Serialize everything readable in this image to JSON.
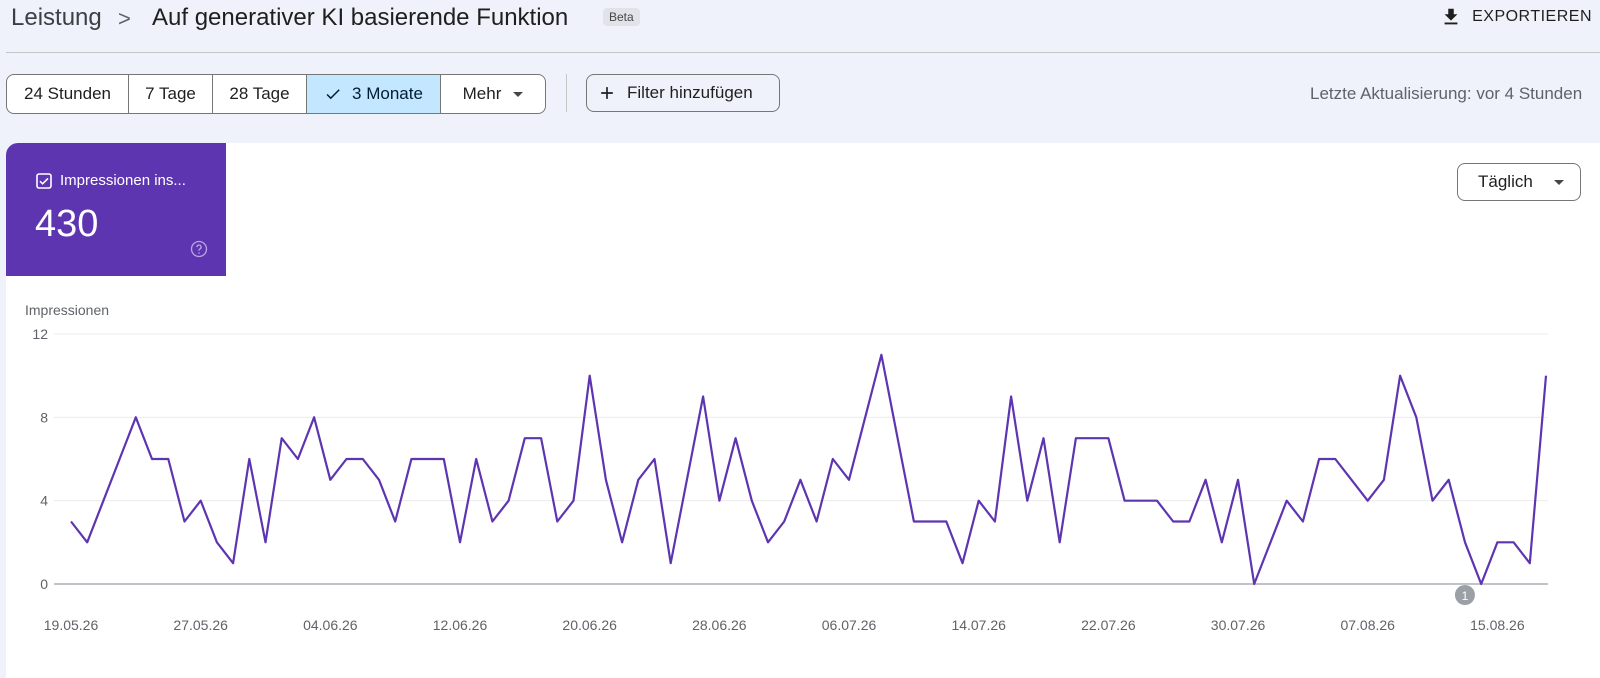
{
  "header": {
    "breadcrumb_root": "Leistung",
    "breadcrumb_separator": ">",
    "title": "Auf generativer KI basierende Funktion",
    "badge": "Beta",
    "export_label": "EXPORTIEREN",
    "export_icon": "download-icon"
  },
  "toolbar": {
    "ranges": [
      {
        "label": "24 Stunden",
        "selected": false
      },
      {
        "label": "7 Tage",
        "selected": false
      },
      {
        "label": "28 Tage",
        "selected": false
      },
      {
        "label": "3 Monate",
        "selected": true
      },
      {
        "label": "Mehr",
        "selected": false
      }
    ],
    "filter_label": "Filter hinzufügen",
    "last_update": "Letzte Aktualisierung: vor 4 Stunden"
  },
  "metric": {
    "label": "Impressionen ins...",
    "value": "430",
    "checked": true,
    "color": "#5e35b1"
  },
  "granularity": {
    "selected": "Täglich"
  },
  "chart_data": {
    "type": "line",
    "ylabel": "Impressionen",
    "ylim": [
      0,
      12
    ],
    "yticks": [
      0,
      4,
      8,
      12
    ],
    "xtick_labels": [
      "19.05.26",
      "27.05.26",
      "04.06.26",
      "12.06.26",
      "20.06.26",
      "28.06.26",
      "06.07.26",
      "14.07.26",
      "22.07.26",
      "30.07.26",
      "07.08.26",
      "15.08.26"
    ],
    "annotation_label": "1",
    "annotation_date": "13.08.26",
    "line_color": "#5e35b1",
    "series": [
      {
        "name": "Impressionen",
        "values": [
          3,
          2,
          4,
          6,
          8,
          6,
          6,
          3,
          4,
          2,
          1,
          6,
          2,
          7,
          6,
          8,
          5,
          6,
          6,
          5,
          3,
          6,
          6,
          6,
          2,
          6,
          3,
          4,
          7,
          7,
          3,
          4,
          10,
          5,
          2,
          5,
          6,
          1,
          5,
          9,
          4,
          7,
          4,
          2,
          3,
          5,
          3,
          6,
          5,
          8,
          11,
          7,
          3,
          3,
          3,
          1,
          4,
          3,
          9,
          4,
          7,
          2,
          7,
          7,
          7,
          4,
          4,
          4,
          3,
          3,
          5,
          2,
          5,
          0,
          2,
          4,
          3,
          6,
          6,
          5,
          4,
          5,
          10,
          8,
          4,
          5,
          2,
          0,
          2,
          2,
          1,
          10
        ]
      }
    ]
  }
}
